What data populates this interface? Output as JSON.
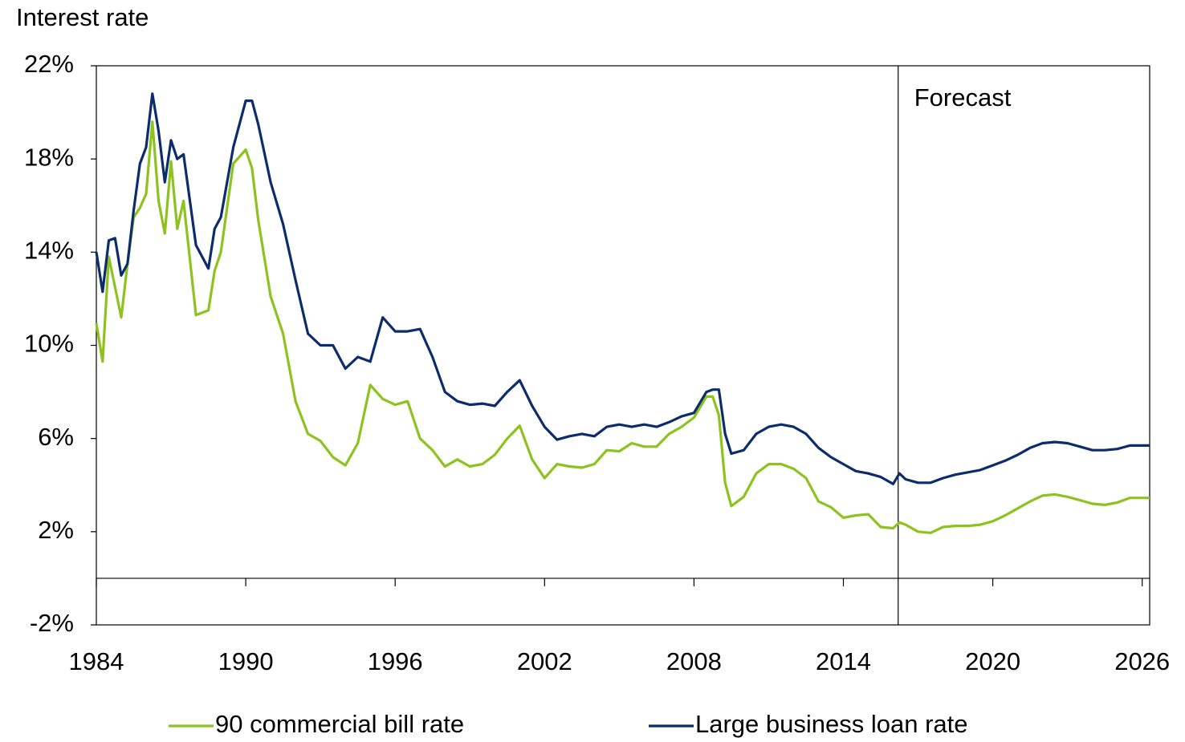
{
  "chart_data": {
    "type": "line",
    "y_axis_label": "Interest rate",
    "annotation": {
      "text": "Forecast",
      "x": 2016.2
    },
    "xlim": [
      1984,
      2026.3
    ],
    "xticks": [
      1984,
      1990,
      1996,
      2002,
      2008,
      2014,
      2020,
      2026
    ],
    "ylim": [
      -2,
      22
    ],
    "yticks": [
      {
        "value": -2,
        "label": "-2%"
      },
      {
        "value": 2,
        "label": "2%"
      },
      {
        "value": 6,
        "label": "6%"
      },
      {
        "value": 10,
        "label": "10%"
      },
      {
        "value": 14,
        "label": "14%"
      },
      {
        "value": 18,
        "label": "18%"
      },
      {
        "value": 22,
        "label": "22%"
      }
    ],
    "grid": false,
    "legend": "bottom",
    "x": [
      1984,
      1984.25,
      1984.5,
      1984.75,
      1985,
      1985.25,
      1985.5,
      1985.75,
      1986,
      1986.25,
      1986.5,
      1986.75,
      1987,
      1987.25,
      1987.5,
      1988,
      1988.5,
      1988.75,
      1989,
      1989.5,
      1990,
      1990.25,
      1990.5,
      1991,
      1991.5,
      1992,
      1992.5,
      1993,
      1993.5,
      1994,
      1994.5,
      1995,
      1995.5,
      1996,
      1996.5,
      1997,
      1997.5,
      1998,
      1998.5,
      1999,
      1999.5,
      2000,
      2000.5,
      2001,
      2001.5,
      2002,
      2002.5,
      2003,
      2003.5,
      2004,
      2004.5,
      2005,
      2005.5,
      2006,
      2006.5,
      2007,
      2007.5,
      2008,
      2008.5,
      2008.75,
      2009,
      2009.25,
      2009.5,
      2010,
      2010.5,
      2011,
      2011.5,
      2012,
      2012.5,
      2013,
      2013.5,
      2014,
      2014.5,
      2015,
      2015.5,
      2016,
      2016.25,
      2016.5,
      2017,
      2017.5,
      2018,
      2018.5,
      2019,
      2019.5,
      2020,
      2020.5,
      2021,
      2021.5,
      2022,
      2022.5,
      2023,
      2023.5,
      2024,
      2024.5,
      2025,
      2025.5,
      2026,
      2026.3
    ],
    "series": [
      {
        "name": "90 commercial bill rate",
        "color": "#8dc21f",
        "values": [
          10.95,
          9.3,
          13.8,
          12.5,
          11.2,
          13.5,
          15.5,
          15.9,
          16.5,
          19.6,
          16.2,
          14.8,
          17.9,
          15.0,
          16.2,
          11.3,
          11.5,
          13.2,
          14.0,
          17.8,
          18.4,
          17.6,
          15.4,
          12.1,
          10.5,
          7.6,
          6.2,
          5.9,
          5.2,
          4.85,
          5.8,
          8.3,
          7.7,
          7.45,
          7.6,
          6.0,
          5.5,
          4.8,
          5.1,
          4.8,
          4.9,
          5.3,
          6.0,
          6.55,
          5.1,
          4.3,
          4.9,
          4.8,
          4.75,
          4.9,
          5.5,
          5.45,
          5.8,
          5.65,
          5.65,
          6.2,
          6.5,
          6.9,
          7.8,
          7.8,
          7.0,
          4.1,
          3.1,
          3.5,
          4.5,
          4.9,
          4.9,
          4.7,
          4.3,
          3.3,
          3.05,
          2.6,
          2.7,
          2.75,
          2.2,
          2.15,
          2.4,
          2.3,
          2.0,
          1.95,
          2.2,
          2.25,
          2.25,
          2.3,
          2.45,
          2.7,
          3.0,
          3.3,
          3.55,
          3.6,
          3.5,
          3.35,
          3.2,
          3.15,
          3.25,
          3.45,
          3.45,
          3.45
        ]
      },
      {
        "name": "Large business loan rate",
        "color": "#0d2c6c",
        "values": [
          14.0,
          12.3,
          14.5,
          14.6,
          13.0,
          13.5,
          15.8,
          17.8,
          18.5,
          20.8,
          19.2,
          17.0,
          18.8,
          18.0,
          18.2,
          14.3,
          13.3,
          15.0,
          15.5,
          18.5,
          20.5,
          20.5,
          19.5,
          17.0,
          15.2,
          12.8,
          10.5,
          10.0,
          10.0,
          9.0,
          9.5,
          9.3,
          11.2,
          10.6,
          10.6,
          10.7,
          9.5,
          8.0,
          7.6,
          7.45,
          7.5,
          7.4,
          8.0,
          8.5,
          7.4,
          6.5,
          5.95,
          6.1,
          6.2,
          6.1,
          6.5,
          6.6,
          6.5,
          6.6,
          6.5,
          6.7,
          6.95,
          7.1,
          8.0,
          8.1,
          8.1,
          6.2,
          5.35,
          5.5,
          6.2,
          6.5,
          6.6,
          6.5,
          6.2,
          5.6,
          5.2,
          4.9,
          4.6,
          4.5,
          4.35,
          4.05,
          4.5,
          4.25,
          4.1,
          4.1,
          4.3,
          4.45,
          4.55,
          4.65,
          4.85,
          5.05,
          5.3,
          5.6,
          5.8,
          5.85,
          5.8,
          5.65,
          5.5,
          5.5,
          5.55,
          5.7,
          5.7,
          5.7
        ]
      }
    ]
  }
}
